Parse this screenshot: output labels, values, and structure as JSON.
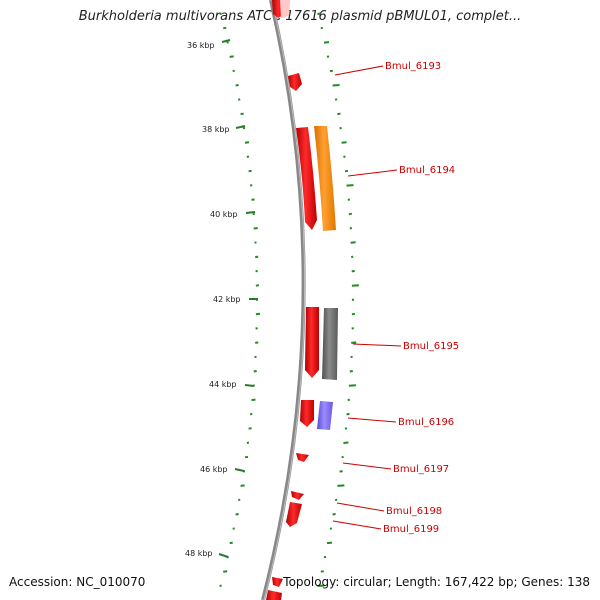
{
  "title": "Burkholderia multivorans ATCC 17616 plasmid pBMUL01, complet...",
  "footer": {
    "accession": "Accession: NC_010070",
    "summary": "Topology: circular; Length: 167,422 bp; Genes: 138"
  },
  "tick_labels": [
    "36 kbp",
    "38 kbp",
    "40 kbp",
    "42 kbp",
    "44 kbp",
    "46 kbp",
    "48 kbp"
  ],
  "gene_labels": [
    "Bmul_6193",
    "Bmul_6194",
    "Bmul_6195",
    "Bmul_6196",
    "Bmul_6197",
    "Bmul_6198",
    "Bmul_6199"
  ],
  "colors": {
    "backbone": "#808080",
    "cds": "#ff0000",
    "orange_feature": "#ff8c00",
    "gray_feature": "#707070",
    "purple_feature": "#7b68ee",
    "gc_ticks": "#228b22",
    "label": "#cc0000"
  }
}
